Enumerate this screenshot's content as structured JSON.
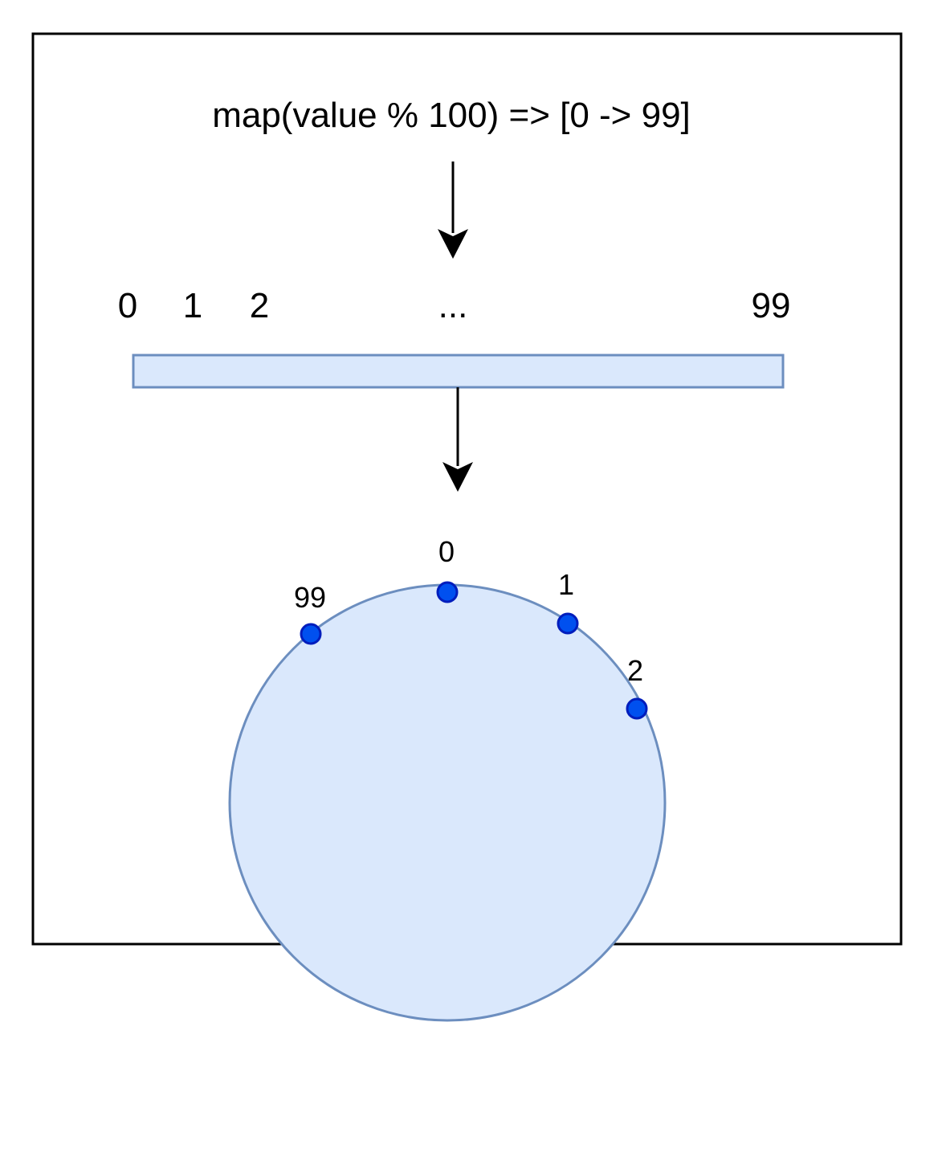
{
  "formula": "map(value % 100) => [0 -> 99]",
  "array": {
    "labels": [
      "0",
      "1",
      "2",
      "...",
      "99"
    ]
  },
  "ring": {
    "labels": [
      "0",
      "1",
      "2",
      "99"
    ]
  },
  "colors": {
    "fill": "#dae8fc",
    "stroke": "#6c8ebf",
    "node_fill": "#0050ef",
    "node_stroke": "#001dbc",
    "border": "#000000"
  },
  "icons": [
    "arrow-down-icon",
    "arrow-down-icon"
  ]
}
